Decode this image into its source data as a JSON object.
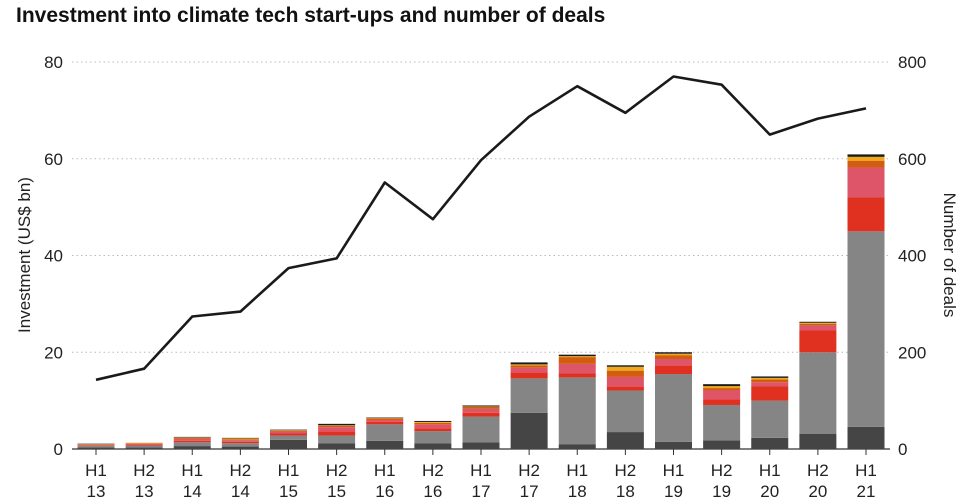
{
  "chart_data": {
    "type": "bar",
    "title": "Investment into climate tech start-ups and number of deals",
    "ylabel": "Investment (US$ bn)",
    "y2label": "Number of deals",
    "ylim": [
      0,
      80
    ],
    "y2lim": [
      0,
      800
    ],
    "yticks": [
      "0",
      "20",
      "40",
      "60",
      "80"
    ],
    "y2ticks": [
      "0",
      "200",
      "400",
      "600",
      "800"
    ],
    "grid": true,
    "categories": [
      [
        "H1",
        "13"
      ],
      [
        "H2",
        "13"
      ],
      [
        "H1",
        "14"
      ],
      [
        "H2",
        "14"
      ],
      [
        "H1",
        "15"
      ],
      [
        "H2",
        "15"
      ],
      [
        "H1",
        "16"
      ],
      [
        "H2",
        "16"
      ],
      [
        "H1",
        "17"
      ],
      [
        "H2",
        "17"
      ],
      [
        "H1",
        "18"
      ],
      [
        "H2",
        "18"
      ],
      [
        "H1",
        "19"
      ],
      [
        "H2",
        "19"
      ],
      [
        "H1",
        "20"
      ],
      [
        "H2",
        "20"
      ],
      [
        "H1",
        "21"
      ]
    ],
    "series": [
      {
        "color": "#454545",
        "values": [
          0.3,
          0.3,
          0.6,
          0.5,
          1.9,
          1.2,
          1.7,
          1.2,
          1.4,
          7.5,
          1.0,
          3.5,
          1.5,
          1.8,
          2.3,
          3.1,
          4.6
        ]
      },
      {
        "color": "#858585",
        "values": [
          0.3,
          0.4,
          0.8,
          0.7,
          0.9,
          1.6,
          3.4,
          2.5,
          5.3,
          7.1,
          13.8,
          8.6,
          14.0,
          7.3,
          7.7,
          16.9,
          40.4
        ]
      },
      {
        "color": "#e03020",
        "values": [
          0.1,
          0.2,
          0.3,
          0.3,
          0.4,
          0.8,
          0.5,
          0.6,
          0.8,
          1.2,
          0.8,
          0.8,
          1.8,
          1.2,
          3.0,
          4.5,
          7.0
        ]
      },
      {
        "color": "#de5468",
        "values": [
          0.1,
          0.2,
          0.4,
          0.3,
          0.4,
          0.9,
          0.4,
          0.8,
          0.8,
          1.0,
          2.0,
          2.0,
          1.3,
          1.8,
          0.8,
          1.0,
          6.2
        ]
      },
      {
        "color": "#d25c12",
        "values": [
          0.1,
          0.1,
          0.2,
          0.2,
          0.2,
          0.3,
          0.3,
          0.3,
          0.4,
          0.5,
          1.4,
          1.3,
          0.8,
          0.5,
          0.6,
          0.4,
          1.4
        ]
      },
      {
        "color": "#f0a818",
        "values": [
          0.1,
          0.1,
          0.1,
          0.2,
          0.1,
          0.1,
          0.1,
          0.2,
          0.1,
          0.2,
          0.2,
          0.8,
          0.3,
          0.4,
          0.3,
          0.2,
          0.8
        ]
      },
      {
        "color": "#1a1a1a",
        "values": [
          0.1,
          0.0,
          0.1,
          0.1,
          0.1,
          0.3,
          0.1,
          0.2,
          0.2,
          0.4,
          0.3,
          0.3,
          0.3,
          0.4,
          0.3,
          0.2,
          0.5
        ]
      }
    ],
    "line": {
      "axis": "right",
      "color": "#1a1a1a",
      "values": [
        143,
        166,
        274,
        284,
        374,
        394,
        551,
        475,
        597,
        687,
        750,
        695,
        770,
        753,
        650,
        683,
        704
      ]
    }
  }
}
